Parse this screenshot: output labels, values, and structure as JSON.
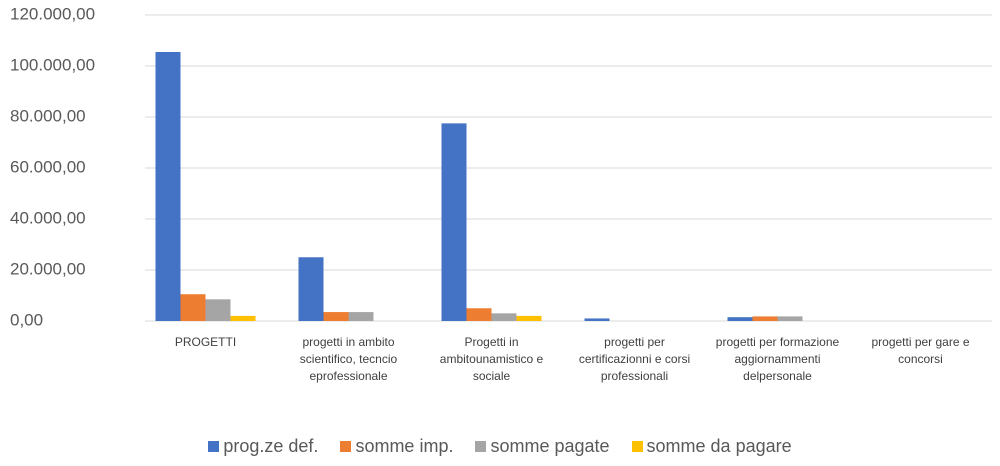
{
  "chart_data": {
    "type": "bar",
    "categories": [
      "PROGETTI",
      "progetti in ambito scientifico, tecncio eprofessionale",
      "Progetti in ambitounamistico e sociale",
      "progetti per certificazionni e corsi professionali",
      "progetti per formazione aggiornammenti delpersonale",
      "progetti per gare e concorsi"
    ],
    "series": [
      {
        "name": "prog.ze def.",
        "color": "#4472c4",
        "values": [
          105500,
          25000,
          77500,
          1000,
          1500,
          0
        ]
      },
      {
        "name": "somme imp.",
        "color": "#ed7d31",
        "values": [
          10500,
          3500,
          5000,
          0,
          1800,
          0
        ]
      },
      {
        "name": "somme pagate",
        "color": "#a5a5a5",
        "values": [
          8500,
          3500,
          3000,
          0,
          1800,
          0
        ]
      },
      {
        "name": "somme da pagare",
        "color": "#ffc000",
        "values": [
          2000,
          0,
          2000,
          0,
          0,
          0
        ]
      }
    ],
    "ylim": [
      0,
      120000
    ],
    "yticks": [
      {
        "value": 0,
        "label": "0,00"
      },
      {
        "value": 20000,
        "label": "20.000,00"
      },
      {
        "value": 40000,
        "label": "40.000,00"
      },
      {
        "value": 60000,
        "label": "60.000,00"
      },
      {
        "value": 80000,
        "label": "80.000,00"
      },
      {
        "value": 100000,
        "label": "100.000,00"
      },
      {
        "value": 120000,
        "label": "120.000,00"
      }
    ],
    "grid": true,
    "legend": "bottom"
  }
}
